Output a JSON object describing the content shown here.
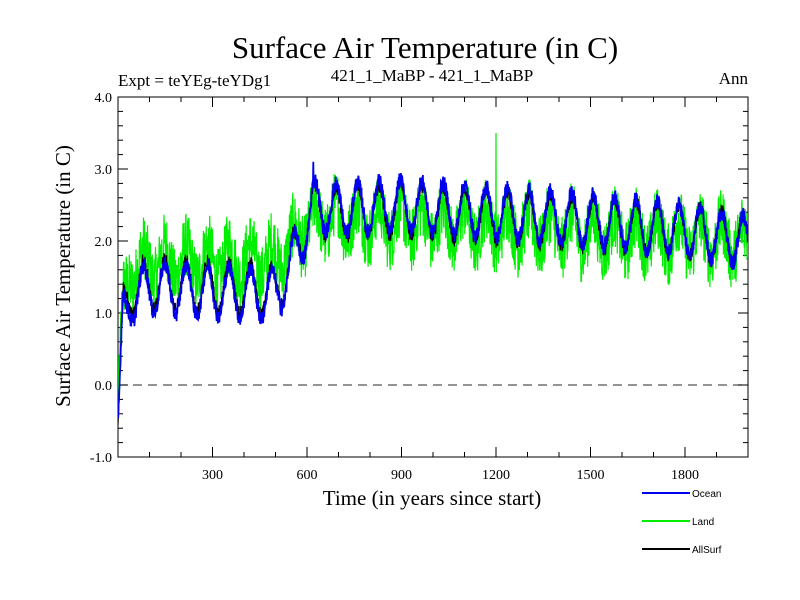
{
  "chart_data": {
    "type": "line",
    "title": "Surface Air Temperature (in C)",
    "subtitle_left": "Expt = teYEg-teYDg1",
    "subtitle_center": "421_1_MaBP - 421_1_MaBP",
    "subtitle_right": "Ann",
    "xlabel": "Time (in years since start)",
    "ylabel": "Surface Air Temperature (in C)",
    "xlim": [
      0,
      2000
    ],
    "ylim": [
      -1.0,
      4.0
    ],
    "x_ticks": [
      300,
      600,
      900,
      1200,
      1500,
      1800
    ],
    "x_tick_labels": [
      "300",
      "600",
      "900",
      "1200",
      "1500",
      "1800"
    ],
    "y_ticks": [
      -1.0,
      0.0,
      1.0,
      2.0,
      3.0,
      4.0
    ],
    "y_tick_labels": [
      "-1.0",
      "0.0",
      "1.0",
      "2.0",
      "3.0",
      "4.0"
    ],
    "reference_line": {
      "y": 0.0,
      "style": "dashed"
    },
    "legend_position": "bottom-right, outside plot",
    "series": [
      {
        "name": "AllSurf",
        "color": "#000000",
        "approx_trend_years": [
          0,
          15,
          40,
          100,
          300,
          500,
          540,
          580,
          620,
          700,
          900,
          1200,
          1500,
          1800,
          2000
        ],
        "approx_trend_values": [
          -0.5,
          1.0,
          1.3,
          1.4,
          1.35,
          1.3,
          1.6,
          2.0,
          2.45,
          2.4,
          2.45,
          2.35,
          2.25,
          2.15,
          2.0
        ],
        "oscillation_period_years": 68,
        "oscillation_amplitude": 0.35
      },
      {
        "name": "Land",
        "color": "#00ee00",
        "approx_trend_years": [
          0,
          15,
          40,
          100,
          300,
          500,
          540,
          580,
          620,
          700,
          900,
          1200,
          1500,
          1800,
          2000
        ],
        "approx_trend_values": [
          -0.5,
          1.1,
          1.6,
          1.7,
          1.7,
          1.75,
          1.9,
          2.1,
          2.3,
          2.3,
          2.25,
          2.2,
          2.1,
          2.05,
          2.0
        ],
        "noise_amplitude": 0.45,
        "max_value": 3.5,
        "max_value_year": 1200
      },
      {
        "name": "Ocean",
        "color": "#0000ee",
        "approx_trend_years": [
          0,
          15,
          40,
          100,
          300,
          500,
          540,
          580,
          620,
          700,
          900,
          1200,
          1500,
          1800,
          2000
        ],
        "approx_trend_values": [
          -0.55,
          0.9,
          1.2,
          1.35,
          1.3,
          1.25,
          1.55,
          2.0,
          2.5,
          2.45,
          2.5,
          2.4,
          2.3,
          2.15,
          2.0
        ],
        "oscillation_period_years": 68,
        "oscillation_amplitude": 0.35,
        "max_value": 3.1,
        "max_value_year": 620
      }
    ],
    "legend": [
      {
        "label": "Ocean",
        "color": "#0000ee"
      },
      {
        "label": "Land",
        "color": "#00ee00"
      },
      {
        "label": "AllSurf",
        "color": "#000000"
      }
    ]
  }
}
